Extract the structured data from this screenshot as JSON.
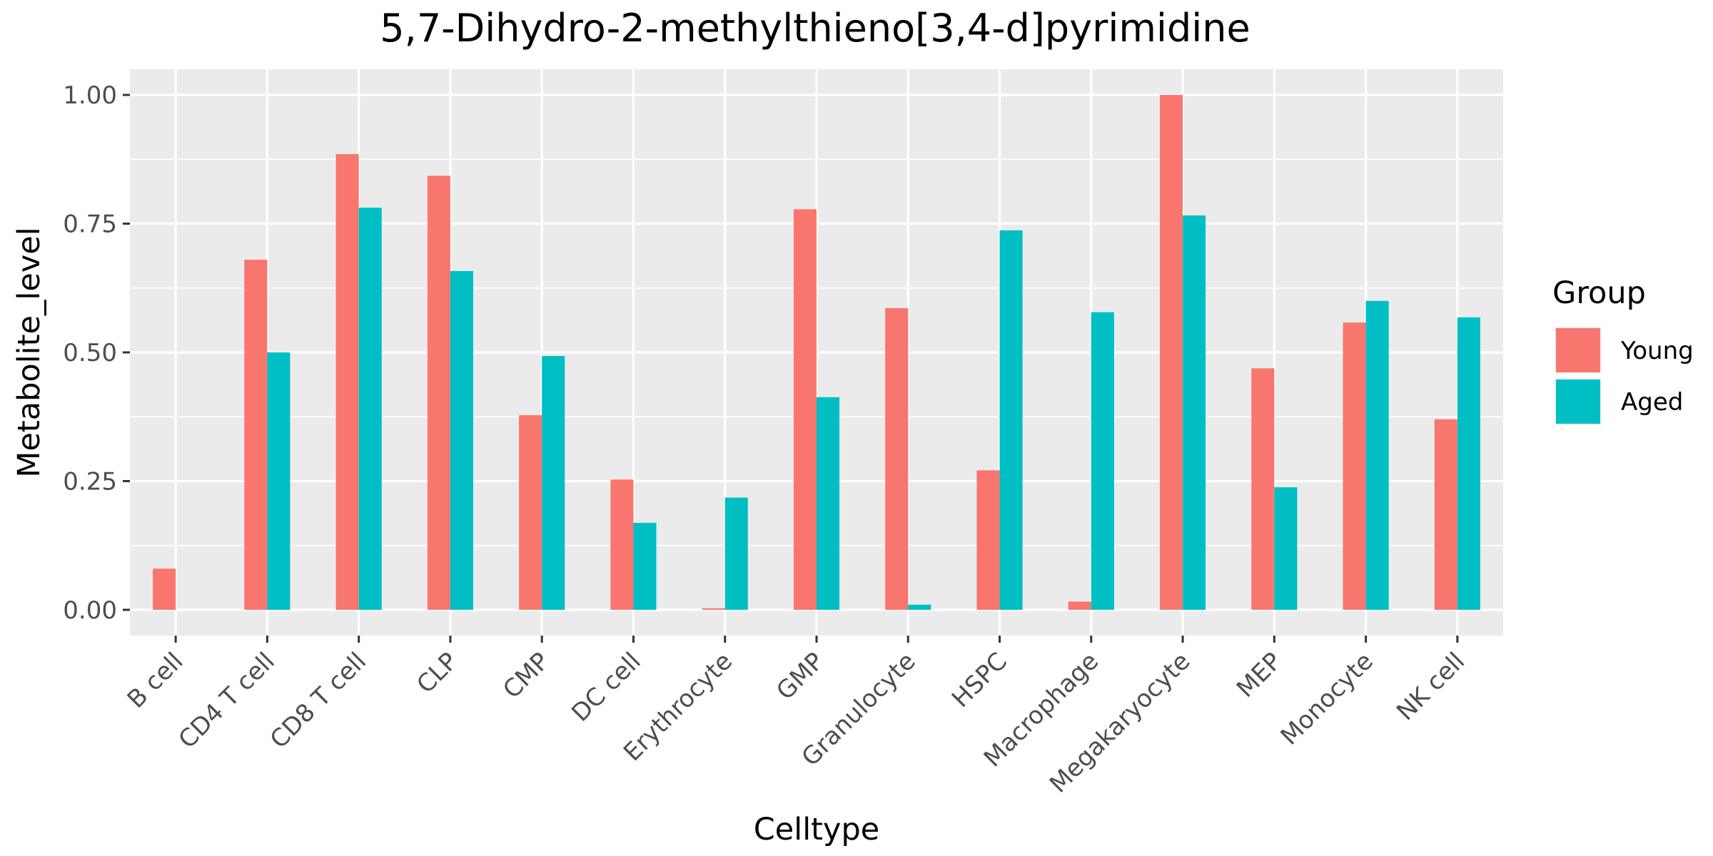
{
  "chart_data": {
    "type": "bar",
    "title": "5,7-Dihydro-2-methylthieno[3,4-d]pyrimidine",
    "xlabel": "Celltype",
    "ylabel": "Metabolite_level",
    "categories": [
      "B cell",
      "CD4 T cell",
      "CD8 T cell",
      "CLP",
      "CMP",
      "DC cell",
      "Erythrocyte",
      "GMP",
      "Granulocyte",
      "HSPC",
      "Macrophage",
      "Megakaryocyte",
      "MEP",
      "Monocyte",
      "NK cell"
    ],
    "series": [
      {
        "name": "Young",
        "color": "#F8766D",
        "values": [
          0.08,
          0.68,
          0.885,
          0.843,
          0.378,
          0.253,
          0.003,
          0.778,
          0.586,
          0.271,
          0.016,
          1.0,
          0.469,
          0.558,
          0.37
        ]
      },
      {
        "name": "Aged",
        "color": "#00BFC4",
        "values": [
          0.0,
          0.5,
          0.781,
          0.658,
          0.493,
          0.169,
          0.218,
          0.413,
          0.01,
          0.737,
          0.578,
          0.766,
          0.238,
          0.6,
          0.568
        ]
      }
    ],
    "ylim": [
      -0.05,
      1.05
    ],
    "yticks": [
      0.0,
      0.25,
      0.5,
      0.75,
      1.0
    ],
    "ytick_labels": [
      "0.00",
      "0.25",
      "0.50",
      "0.75",
      "1.00"
    ],
    "grid": true,
    "legend": {
      "title": "Group",
      "placement": "right"
    }
  }
}
